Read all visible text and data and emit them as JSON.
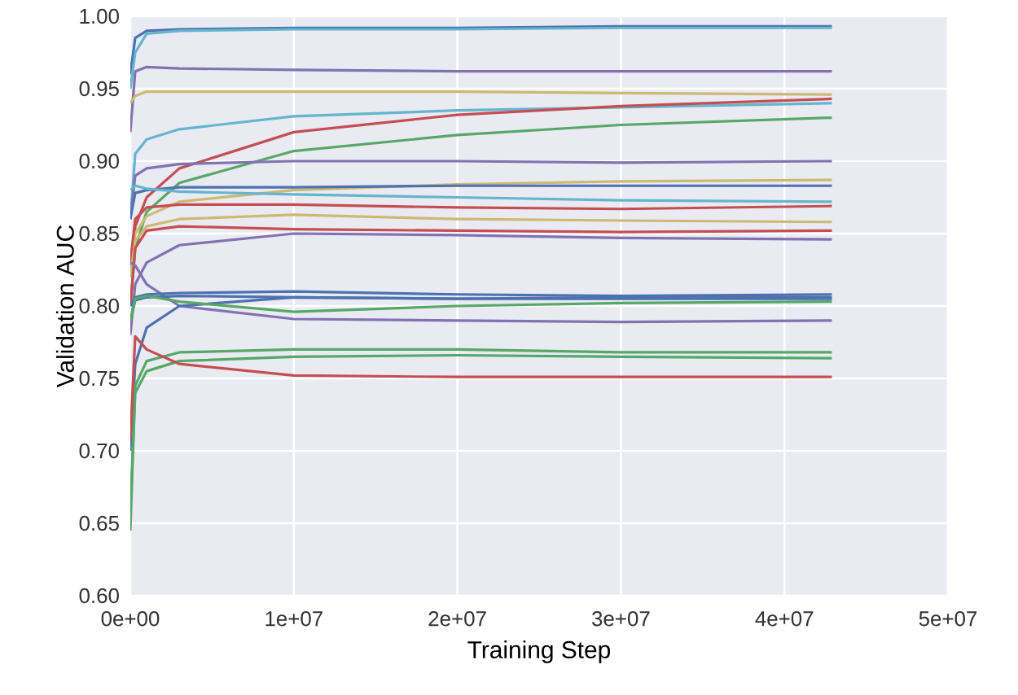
{
  "chart_data": {
    "type": "line",
    "xlabel": "Training Step",
    "ylabel": "Validation AUC",
    "x": [
      0,
      300000,
      1000000,
      3000000,
      10000000,
      20000000,
      30000000,
      42900000
    ],
    "xlim": [
      0,
      50000000
    ],
    "ylim": [
      0.6,
      1.0
    ],
    "xticks": [
      {
        "value": 0,
        "label": "0e+00"
      },
      {
        "value": 10000000,
        "label": "1e+07"
      },
      {
        "value": 20000000,
        "label": "2e+07"
      },
      {
        "value": 30000000,
        "label": "3e+07"
      },
      {
        "value": 40000000,
        "label": "4e+07"
      },
      {
        "value": 50000000,
        "label": "5e+07"
      }
    ],
    "yticks": [
      {
        "value": 0.6,
        "label": "0.60"
      },
      {
        "value": 0.65,
        "label": "0.65"
      },
      {
        "value": 0.7,
        "label": "0.70"
      },
      {
        "value": 0.75,
        "label": "0.75"
      },
      {
        "value": 0.8,
        "label": "0.80"
      },
      {
        "value": 0.85,
        "label": "0.85"
      },
      {
        "value": 0.9,
        "label": "0.90"
      },
      {
        "value": 0.95,
        "label": "0.95"
      },
      {
        "value": 1.0,
        "label": "1.00"
      }
    ],
    "grid": true,
    "series": [
      {
        "color": "#4c72b0",
        "values": [
          0.96,
          0.985,
          0.99,
          0.991,
          0.992,
          0.992,
          0.993,
          0.993
        ]
      },
      {
        "color": "#64b5cd",
        "values": [
          0.95,
          0.975,
          0.988,
          0.99,
          0.991,
          0.991,
          0.992,
          0.992
        ]
      },
      {
        "color": "#8172b2",
        "values": [
          0.92,
          0.962,
          0.965,
          0.964,
          0.963,
          0.962,
          0.962,
          0.962
        ]
      },
      {
        "color": "#ccb974",
        "values": [
          0.94,
          0.945,
          0.948,
          0.948,
          0.948,
          0.948,
          0.947,
          0.946
        ]
      },
      {
        "color": "#64b5cd",
        "values": [
          0.86,
          0.905,
          0.915,
          0.922,
          0.931,
          0.935,
          null,
          0.94
        ]
      },
      {
        "color": "#c44e52",
        "values": [
          0.82,
          0.855,
          0.875,
          0.895,
          0.92,
          0.932,
          0.938,
          0.943
        ]
      },
      {
        "color": "#55a868",
        "values": [
          0.8,
          0.84,
          0.865,
          0.885,
          0.907,
          0.918,
          0.925,
          0.93
        ]
      },
      {
        "color": "#8172b2",
        "values": [
          0.86,
          0.89,
          0.895,
          0.898,
          0.9,
          0.9,
          0.899,
          0.9
        ]
      },
      {
        "color": "#ccb974",
        "values": [
          0.83,
          0.85,
          0.862,
          0.872,
          0.88,
          0.884,
          0.886,
          0.887
        ]
      },
      {
        "color": "#4c72b0",
        "values": [
          0.86,
          0.878,
          0.88,
          0.882,
          0.882,
          0.883,
          0.883,
          0.883
        ]
      },
      {
        "color": "#64b5cd",
        "values": [
          0.88,
          0.883,
          0.881,
          0.879,
          0.877,
          0.875,
          0.873,
          0.872
        ]
      },
      {
        "color": "#c44e52",
        "values": [
          0.83,
          0.86,
          0.868,
          0.87,
          0.87,
          0.868,
          0.867,
          0.869
        ]
      },
      {
        "color": "#ccb974",
        "values": [
          0.82,
          0.845,
          0.855,
          0.86,
          0.863,
          0.86,
          0.859,
          0.858
        ]
      },
      {
        "color": "#c44e52",
        "values": [
          0.8,
          0.84,
          0.852,
          0.855,
          0.853,
          0.852,
          0.851,
          0.852
        ]
      },
      {
        "color": "#8172b2",
        "values": [
          0.78,
          0.815,
          0.83,
          0.842,
          0.85,
          0.849,
          0.847,
          0.846
        ]
      },
      {
        "color": "#8172b2",
        "values": [
          0.83,
          0.828,
          0.815,
          0.8,
          0.791,
          0.79,
          0.789,
          0.79
        ]
      },
      {
        "color": "#4c72b0",
        "values": [
          0.8,
          0.806,
          0.808,
          0.809,
          0.81,
          0.808,
          0.807,
          0.808
        ]
      },
      {
        "color": "#4c72b0",
        "values": [
          0.79,
          0.804,
          0.806,
          0.807,
          0.806,
          0.805,
          0.805,
          0.805
        ]
      },
      {
        "color": "#4c72b0",
        "values": [
          0.7,
          0.76,
          0.785,
          0.8,
          0.806,
          0.805,
          0.806,
          0.806
        ]
      },
      {
        "color": "#55a868",
        "values": [
          0.79,
          0.805,
          0.807,
          0.803,
          0.796,
          0.8,
          0.802,
          0.803
        ]
      },
      {
        "color": "#55a868",
        "values": [
          0.645,
          0.745,
          0.762,
          0.768,
          0.77,
          0.77,
          0.768,
          0.768
        ]
      },
      {
        "color": "#55a868",
        "values": [
          0.66,
          0.74,
          0.755,
          0.762,
          0.765,
          0.766,
          0.765,
          0.764
        ]
      },
      {
        "color": "#c44e52",
        "values": [
          0.708,
          0.779,
          0.77,
          0.76,
          0.752,
          0.751,
          0.751,
          0.751
        ]
      }
    ]
  }
}
